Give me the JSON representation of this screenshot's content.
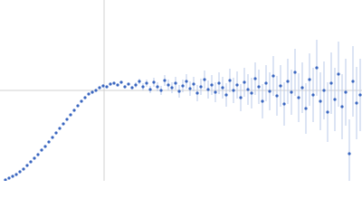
{
  "chart_data": {
    "type": "scatter",
    "xlim": [
      0,
      400
    ],
    "ylim": [
      0,
      200
    ],
    "crosshair": {
      "x": 115,
      "y": 100,
      "color": "#d0d0d0"
    },
    "error_color": "#b8c9ea",
    "series": [
      {
        "color": "#3a66c0",
        "x": [
          6,
          10,
          14,
          18,
          22,
          26,
          30,
          34,
          38,
          42,
          46,
          50,
          54,
          58,
          62,
          66,
          70,
          74,
          78,
          82,
          86,
          90,
          94,
          98,
          102,
          106,
          110,
          114,
          118,
          122,
          126,
          130,
          134,
          138,
          142,
          146,
          150,
          154,
          158,
          162,
          166,
          170,
          174,
          178,
          182,
          186,
          190,
          194,
          198,
          202,
          206,
          210,
          214,
          218,
          222,
          226,
          230,
          234,
          238,
          242,
          246,
          250,
          254,
          258,
          262,
          266,
          270,
          274,
          278,
          282,
          286,
          290,
          294,
          298,
          302,
          306,
          310,
          314,
          318,
          322,
          326,
          330,
          334,
          338,
          342,
          346,
          350,
          354,
          358,
          362,
          366,
          370,
          374,
          378,
          382,
          386,
          390,
          394,
          398
        ],
        "values": [
          1,
          3,
          5,
          7,
          10,
          13,
          17,
          21,
          25,
          29,
          34,
          38,
          43,
          48,
          53,
          58,
          63,
          68,
          73,
          78,
          83,
          88,
          92,
          96,
          98,
          100,
          103,
          105,
          104,
          107,
          108,
          106,
          109,
          104,
          107,
          103,
          106,
          110,
          104,
          108,
          101,
          109,
          104,
          100,
          111,
          106,
          103,
          108,
          99,
          105,
          110,
          102,
          107,
          97,
          104,
          112,
          101,
          106,
          98,
          108,
          103,
          95,
          111,
          100,
          106,
          92,
          109,
          101,
          97,
          113,
          104,
          88,
          108,
          99,
          116,
          94,
          105,
          85,
          110,
          98,
          120,
          92,
          103,
          80,
          112,
          95,
          125,
          88,
          100,
          76,
          108,
          90,
          118,
          82,
          98,
          30,
          110,
          86,
          95
        ],
        "errors": [
          1,
          1,
          1,
          1,
          1,
          1,
          1,
          1,
          1,
          1,
          1,
          1,
          1,
          1,
          1,
          1,
          1,
          1,
          1,
          1,
          1,
          1,
          1,
          1,
          1,
          1,
          1,
          1,
          1,
          1,
          1,
          1,
          1,
          1,
          1,
          1,
          3,
          3,
          4,
          4,
          4,
          5,
          5,
          5,
          6,
          6,
          6,
          7,
          7,
          7,
          8,
          8,
          8,
          9,
          9,
          10,
          10,
          11,
          11,
          12,
          12,
          13,
          13,
          14,
          15,
          15,
          16,
          17,
          17,
          18,
          19,
          19,
          20,
          21,
          22,
          22,
          23,
          24,
          25,
          25,
          26,
          27,
          28,
          28,
          29,
          30,
          31,
          32,
          32,
          33,
          34,
          35,
          36,
          36,
          37,
          38,
          39,
          40,
          40
        ]
      }
    ]
  }
}
